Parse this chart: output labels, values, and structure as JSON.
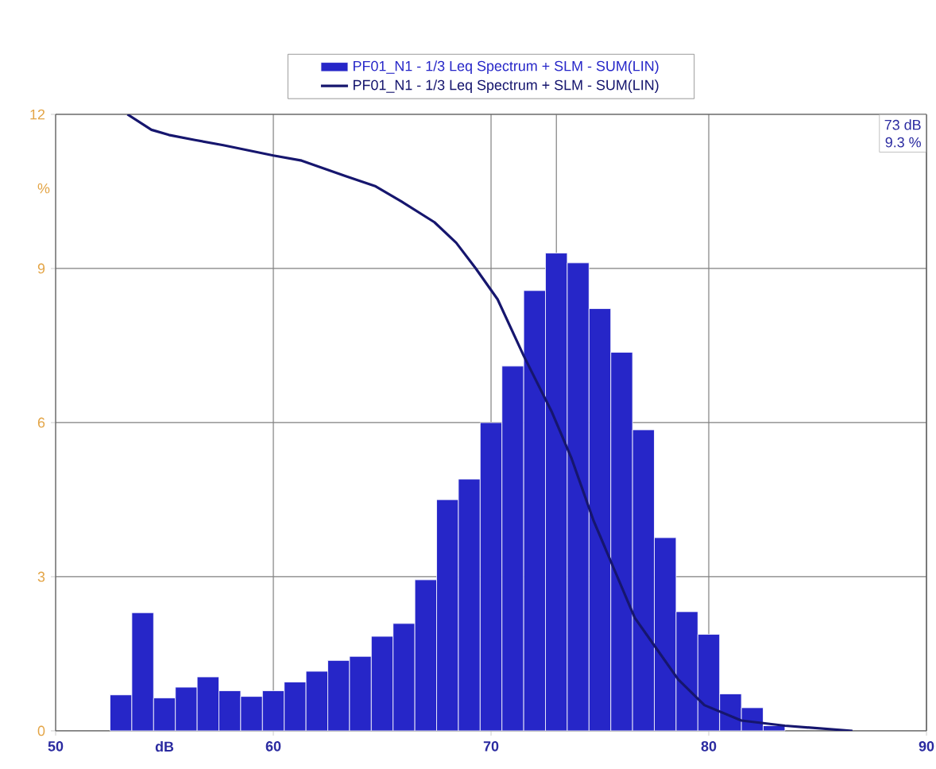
{
  "chart_data": {
    "type": "histogram",
    "xlabel": "dB",
    "ylabel": "%",
    "xlim": [
      50,
      90
    ],
    "xticks": [
      50,
      60,
      70,
      80,
      90
    ],
    "ylim": [
      0,
      12
    ],
    "yticks": [
      0,
      3,
      6,
      9,
      12
    ],
    "grid": true,
    "legend": "top",
    "ref_lines": [
      {
        "axis": "x",
        "value": 73,
        "color": "#808080"
      }
    ],
    "annotations": [
      "73 dB",
      "9.3 %"
    ],
    "series": [
      {
        "name": "PF01_N1 - 1/3 Leq Spectrum + SLM - SUM(LIN)",
        "color": "#2626c8",
        "bins": [
          52.5,
          53.5,
          54.5,
          55.5,
          56.5,
          57.5,
          58.5,
          59.5,
          60.5,
          61.5,
          62.5,
          63.5,
          64.5,
          65.5,
          66.5,
          67.5,
          68.5,
          69.5,
          70.5,
          71.5,
          72.5,
          73.5,
          74.5,
          75.5,
          76.5,
          77.5,
          78.5,
          79.5,
          80.5,
          81.5,
          82.5,
          83.5
        ],
        "values": [
          0.7,
          2.3,
          0.64,
          0.85,
          1.05,
          0.78,
          0.67,
          0.78,
          0.95,
          1.16,
          1.37,
          1.45,
          1.84,
          2.09,
          2.94,
          4.5,
          4.9,
          6.0,
          7.1,
          8.57,
          9.3,
          9.11,
          8.22,
          7.37,
          5.86,
          3.76,
          2.32,
          1.88,
          0.72,
          0.45,
          0.1
        ]
      },
      {
        "name": "PF01_N1 - 1/3 Leq Spectrum + SLM - SUM(LIN)",
        "type": "line",
        "color": "#16166e",
        "x": [
          53.3,
          54.4,
          55.2,
          56.4,
          57.7,
          60.0,
          61.3,
          63.3,
          64.7,
          65.9,
          67.4,
          68.4,
          69.3,
          70.3,
          71.5,
          72.8,
          73.7,
          74.7,
          75.7,
          76.6,
          77.6,
          78.6,
          79.8,
          81.5,
          83.5,
          86.6
        ],
        "values": [
          12,
          11.7,
          11.6,
          11.5,
          11.4,
          11.2,
          11.1,
          10.8,
          10.6,
          10.3,
          9.9,
          9.5,
          9.0,
          8.4,
          7.3,
          6.2,
          5.3,
          4.1,
          3.1,
          2.2,
          1.6,
          1.0,
          0.5,
          0.2,
          0.1,
          0
        ]
      }
    ]
  }
}
